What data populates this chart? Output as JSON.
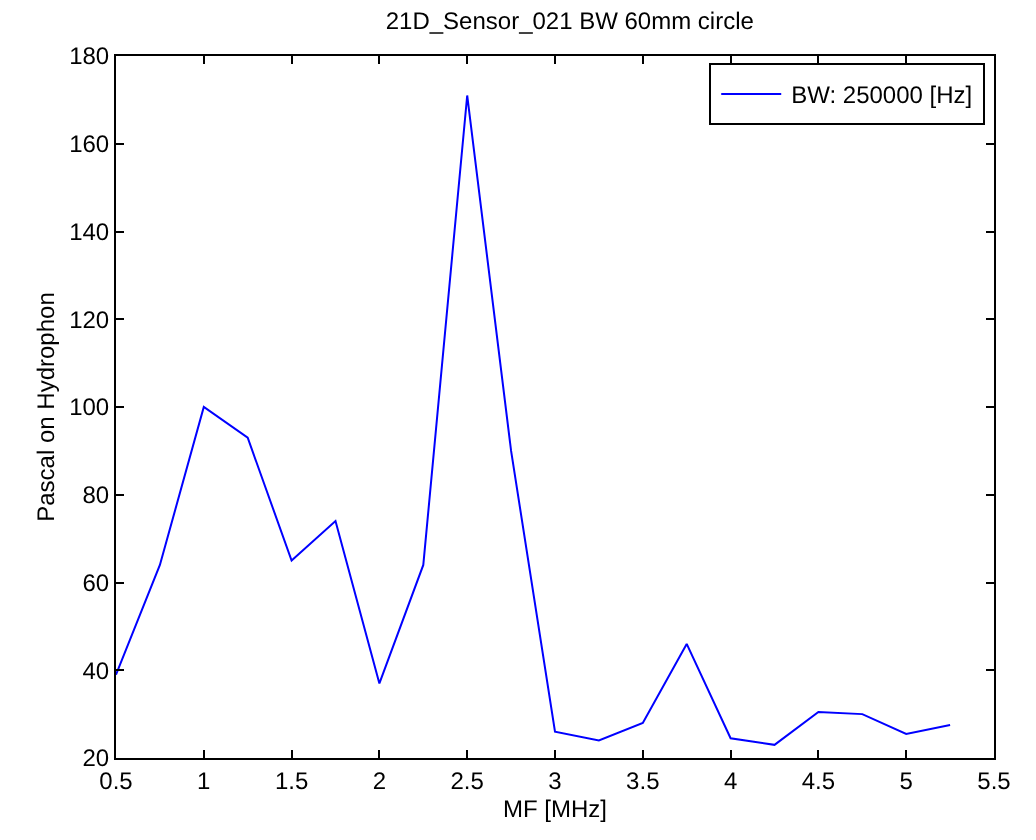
{
  "chart_data": {
    "type": "line",
    "title": "21D_Sensor_021 BW 60mm circle",
    "xlabel": "MF [MHz]",
    "ylabel": "Pascal on Hydrophon",
    "x": [
      0.5,
      0.75,
      1.0,
      1.25,
      1.5,
      1.75,
      2.0,
      2.25,
      2.5,
      2.75,
      3.0,
      3.25,
      3.5,
      3.75,
      4.0,
      4.25,
      4.5,
      4.75,
      5.0,
      5.25
    ],
    "series": [
      {
        "name": "BW: 250000 [Hz]",
        "color": "#0000ff",
        "values": [
          39,
          64,
          100,
          93,
          65,
          74,
          37,
          64,
          171,
          90,
          26,
          24,
          28,
          46,
          24.5,
          23,
          30.5,
          30,
          25.5,
          27.5
        ]
      }
    ],
    "xlim": [
      0.5,
      5.5
    ],
    "xticks": [
      0.5,
      1,
      1.5,
      2,
      2.5,
      3,
      3.5,
      4,
      4.5,
      5,
      5.5
    ],
    "ylim": [
      20,
      180
    ],
    "yticks": [
      20,
      40,
      60,
      80,
      100,
      120,
      140,
      160,
      180
    ],
    "legend": "top right",
    "marker": "none",
    "line_style": "solid"
  }
}
